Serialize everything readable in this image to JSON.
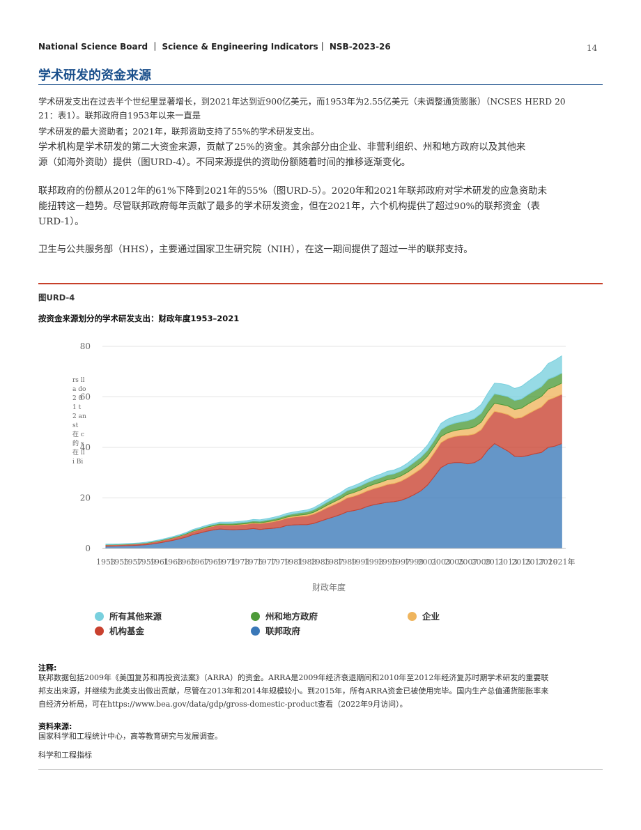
{
  "header": {
    "running_title": "National Science Board ｜ Science & Engineering Indicators｜ NSB-2023-26",
    "page_number": "14"
  },
  "section_title": "学术研发的资金来源",
  "paragraphs": {
    "p1a": "学术研发支出在过去半个世纪里显著增长，到2021年达到近900亿美元，而1953年为2.55亿美元（未调整通货膨胀）（NCSES HERD 20",
    "p1b": "21：表1）。联邦政府自1953年以来一直是",
    "p2": "学术研发的最大资助者；2021年，联邦资助支持了55%的学术研发支出。",
    "p3a": "学术机构是学术研发的第二大资金来源，贡献了25%的资金。其余部分由企业、非营利组织、州和地方政府以及其他来",
    "p3b": "源（如海外资助）提供（图URD-4）。不同来源提供的资助份额随着时间的推移逐渐变化。",
    "p4a": "联邦政府的份额从2012年的61%下降到2021年的55%（图URD-5）。2020年和2021年联邦政府对学术研发的应急资助未",
    "p4b": "能扭转这一趋势。尽管联邦政府每年贡献了最多的学术研发资金，但在2021年，六个机构提供了超过90%的联邦资金（表",
    "p4c": "URD-1）。",
    "p5": "卫生与公共服务部（HHS），主要通过国家卫生研究院（NIH），在这一期间提供了超过一半的联邦支持。"
  },
  "figure": {
    "label": "图URD-4",
    "title": "按资金来源划分的学术研发支出：财政年度1953–2021",
    "ylabel_fragment": "rs lla do 2 01 t 2 an st 在 c 的 s 在 lli Bi"
  },
  "chart_data": {
    "type": "area",
    "stacked": true,
    "x": [
      1953,
      1954,
      1955,
      1956,
      1957,
      1958,
      1959,
      1960,
      1961,
      1962,
      1963,
      1964,
      1965,
      1966,
      1967,
      1968,
      1969,
      1970,
      1971,
      1972,
      1973,
      1974,
      1975,
      1976,
      1977,
      1978,
      1979,
      1980,
      1981,
      1982,
      1983,
      1984,
      1985,
      1986,
      1987,
      1988,
      1989,
      1990,
      1991,
      1992,
      1993,
      1994,
      1995,
      1996,
      1997,
      1998,
      1999,
      2000,
      2001,
      2002,
      2003,
      2004,
      2005,
      2006,
      2007,
      2008,
      2009,
      2010,
      2011,
      2012,
      2013,
      2014,
      2015,
      2016,
      2017,
      2018,
      2019,
      2020,
      2021
    ],
    "x_tick_labels": [
      "1953",
      "1955",
      "1957",
      "1959",
      "1961",
      "1963",
      "1965",
      "1967",
      "1969",
      "1971",
      "1973",
      "1975",
      "1977",
      "1979",
      "1981",
      "1983",
      "1985",
      "1987",
      "1989",
      "1991",
      "1993",
      "1995",
      "1997",
      "1999",
      "2001",
      "2003",
      "2005",
      "2007",
      "2009",
      "2011",
      "2013",
      "2015",
      "2017",
      "2019",
      "2021年"
    ],
    "xlabel": "财政年度",
    "ylim": [
      0,
      80
    ],
    "yticks": [
      0,
      20,
      40,
      60,
      80
    ],
    "grid": true,
    "legend_position": "bottom",
    "series": [
      {
        "name": "联邦政府",
        "color": "#3a78b8",
        "values": [
          0.9,
          0.95,
          1.0,
          1.1,
          1.15,
          1.3,
          1.5,
          1.8,
          2.2,
          2.7,
          3.2,
          3.8,
          4.5,
          5.5,
          6.1,
          6.8,
          7.3,
          7.7,
          7.5,
          7.4,
          7.5,
          7.6,
          7.9,
          7.5,
          7.8,
          8.0,
          8.3,
          9.1,
          9.3,
          9.4,
          9.4,
          9.9,
          10.8,
          11.7,
          12.5,
          13.4,
          14.5,
          15.0,
          15.6,
          16.6,
          17.3,
          17.8,
          18.3,
          18.5,
          19.0,
          20.0,
          21.3,
          22.8,
          25.1,
          28.5,
          32.0,
          33.5,
          34.0,
          34.0,
          33.5,
          34.0,
          35.5,
          39.0,
          41.5,
          40.0,
          38.5,
          36.5,
          36.3,
          36.8,
          37.5,
          38.0,
          40.0,
          40.5,
          41.5
        ]
      },
      {
        "name": "机构基金",
        "color": "#c9412f",
        "values": [
          0.5,
          0.5,
          0.5,
          0.5,
          0.55,
          0.55,
          0.6,
          0.7,
          0.75,
          0.8,
          0.9,
          1.0,
          1.1,
          1.2,
          1.3,
          1.4,
          1.5,
          1.6,
          1.7,
          1.8,
          1.9,
          2.0,
          2.1,
          2.3,
          2.4,
          2.6,
          2.9,
          2.9,
          3.1,
          3.3,
          3.5,
          3.7,
          4.0,
          4.4,
          4.8,
          5.1,
          5.5,
          5.7,
          6.0,
          6.2,
          6.4,
          6.6,
          7.0,
          7.2,
          7.6,
          8.0,
          8.4,
          8.7,
          9.0,
          9.4,
          9.9,
          10.0,
          10.3,
          10.7,
          11.3,
          11.3,
          11.5,
          12.0,
          12.8,
          13.7,
          14.5,
          15.0,
          15.5,
          16.5,
          17.2,
          18.0,
          18.8,
          19.3,
          19.5
        ]
      },
      {
        "name": "企业",
        "color": "#efb55e",
        "values": [
          0.05,
          0.05,
          0.05,
          0.05,
          0.05,
          0.05,
          0.06,
          0.07,
          0.08,
          0.09,
          0.1,
          0.11,
          0.12,
          0.13,
          0.14,
          0.15,
          0.16,
          0.18,
          0.2,
          0.22,
          0.24,
          0.26,
          0.28,
          0.3,
          0.33,
          0.36,
          0.39,
          0.42,
          0.47,
          0.55,
          0.62,
          0.72,
          0.85,
          1.0,
          1.1,
          1.2,
          1.35,
          1.45,
          1.55,
          1.6,
          1.7,
          1.8,
          1.9,
          1.95,
          2.05,
          2.15,
          2.3,
          2.4,
          2.45,
          2.4,
          2.4,
          2.3,
          2.35,
          2.4,
          2.6,
          2.85,
          3.0,
          3.1,
          3.2,
          3.3,
          3.4,
          3.5,
          3.7,
          3.9,
          4.0,
          4.2,
          4.3,
          4.3,
          4.4
        ]
      },
      {
        "name": "州和地方政府",
        "color": "#4e9b3a",
        "values": [
          0.1,
          0.1,
          0.1,
          0.11,
          0.12,
          0.13,
          0.14,
          0.16,
          0.18,
          0.2,
          0.23,
          0.26,
          0.29,
          0.33,
          0.37,
          0.4,
          0.44,
          0.48,
          0.5,
          0.53,
          0.56,
          0.6,
          0.62,
          0.65,
          0.67,
          0.7,
          0.75,
          0.8,
          0.85,
          0.9,
          0.95,
          1.0,
          1.1,
          1.2,
          1.3,
          1.4,
          1.5,
          1.6,
          1.65,
          1.7,
          1.75,
          1.8,
          1.85,
          1.9,
          1.95,
          2.0,
          2.1,
          2.2,
          2.3,
          2.5,
          2.7,
          2.8,
          2.9,
          3.0,
          3.2,
          3.35,
          3.5,
          3.6,
          3.7,
          3.7,
          3.65,
          3.6,
          3.65,
          3.7,
          3.8,
          3.85,
          3.9,
          3.9,
          4.0
        ]
      },
      {
        "name": "所有其他来源",
        "color": "#79d0de",
        "values": [
          0.15,
          0.15,
          0.15,
          0.16,
          0.17,
          0.18,
          0.19,
          0.2,
          0.22,
          0.25,
          0.27,
          0.3,
          0.33,
          0.36,
          0.4,
          0.43,
          0.46,
          0.48,
          0.5,
          0.52,
          0.54,
          0.56,
          0.58,
          0.6,
          0.62,
          0.64,
          0.66,
          0.68,
          0.7,
          0.72,
          0.75,
          0.8,
          0.85,
          0.9,
          0.95,
          1.0,
          1.05,
          1.1,
          1.2,
          1.25,
          1.3,
          1.4,
          1.45,
          1.5,
          1.55,
          1.6,
          1.75,
          1.9,
          2.1,
          2.3,
          2.5,
          2.6,
          2.7,
          2.9,
          3.1,
          3.3,
          3.5,
          3.8,
          4.2,
          4.5,
          4.6,
          4.7,
          5.0,
          5.2,
          5.5,
          5.8,
          6.2,
          6.5,
          6.8
        ]
      }
    ]
  },
  "legend": [
    "所有其他来源",
    "州和地方政府",
    "企业",
    "机构基金",
    "联邦政府"
  ],
  "notes": {
    "note_head": "注释:",
    "note_line1": "联邦数据包括2009年《美国复苏和再投资法案》（ARRA）的资金。ARRA是2009年经济衰退期间和2010年至2012年经济复苏时期学术研发的重要联",
    "note_line2": "邦支出来源，并继续为此类支出做出贡献，尽管在2013年和2014年规模较小。到2015年，所有ARRA资金已被使用完毕。国内生产总值通货膨胀率来",
    "note_line3": "自经济分析局，可在https://www.bea.gov/data/gdp/gross-domestic-product查看（2022年9月访问）。",
    "source_head": "资料来源:",
    "source_text": "国家科学和工程统计中心，高等教育研究与发展调查。",
    "footer_text": "科学和工程指标"
  }
}
